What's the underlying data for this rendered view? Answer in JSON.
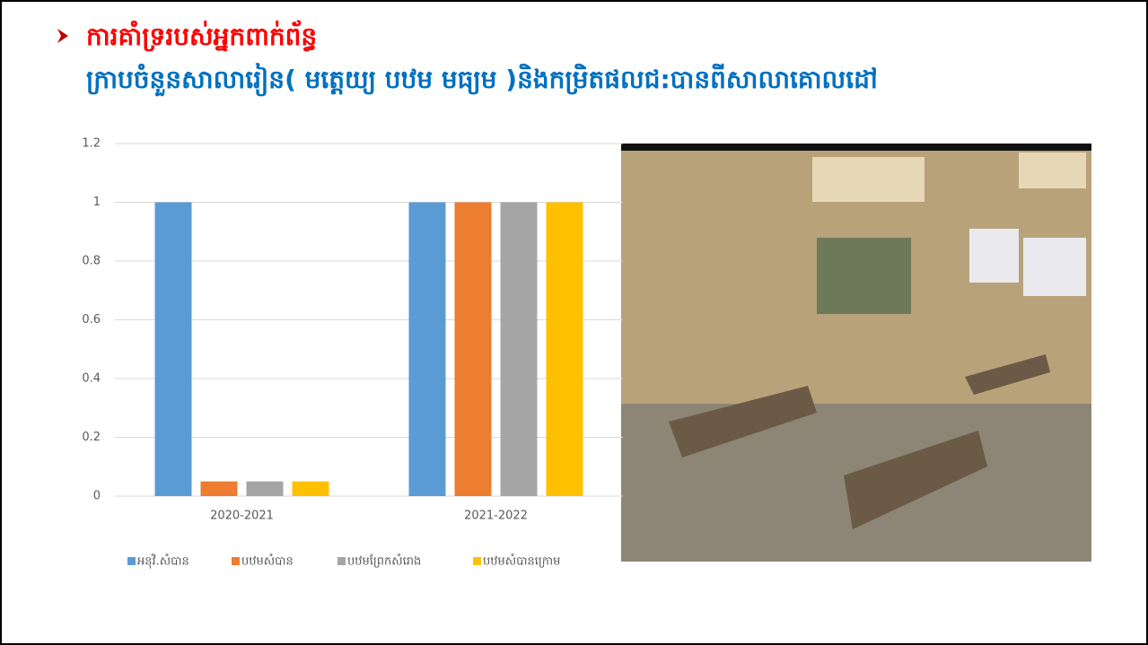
{
  "slide": {
    "heading": "ការគាំទ្ររបស់អ្នកពាក់ព័ន្ធ",
    "subheading": "ក្រាបចំនួនសាលារៀន( មត្តេយ្យ បឋម មធ្យម )និងកម្រិតផលជ:បានពីសាលាគោលដៅ"
  },
  "chart_data": {
    "type": "bar",
    "categories": [
      "2020-2021",
      "2021-2022"
    ],
    "series": [
      {
        "name": "អនុវិ.សំបាន",
        "color": "#5b9bd5",
        "values": [
          1,
          1
        ]
      },
      {
        "name": "បឋមសំបាន",
        "color": "#ed7d31",
        "values": [
          0.05,
          1
        ]
      },
      {
        "name": "បឋមព្រែកសំរោង",
        "color": "#a5a5a5",
        "values": [
          0.05,
          1
        ]
      },
      {
        "name": "បឋមសំបានក្រោម",
        "color": "#ffc000",
        "values": [
          0.05,
          1
        ]
      }
    ],
    "ylim": [
      0,
      1.2
    ],
    "yticks": [
      0,
      0.2,
      0.4,
      0.6,
      0.8,
      1,
      1.2
    ],
    "grid": true,
    "legend": "bottom"
  }
}
